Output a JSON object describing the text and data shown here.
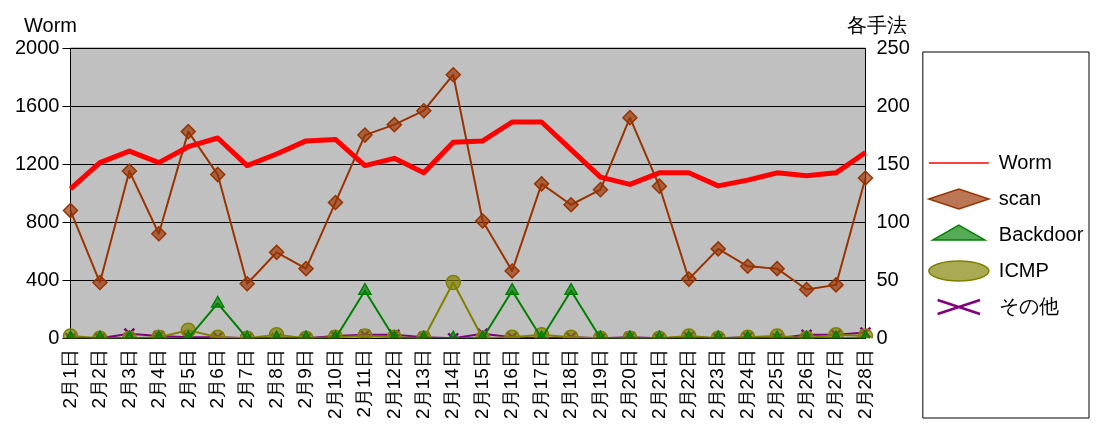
{
  "chart_data": {
    "type": "line",
    "ylabel": "Worm",
    "y2label": "各手法",
    "categories": [
      "2月1日",
      "2月2日",
      "2月3日",
      "2月4日",
      "2月5日",
      "2月6日",
      "2月7日",
      "2月8日",
      "2月9日",
      "2月10日",
      "2月11日",
      "2月12日",
      "2月13日",
      "2月14日",
      "2月15日",
      "2月16日",
      "2月17日",
      "2月18日",
      "2月19日",
      "2月20日",
      "2月21日",
      "2月22日",
      "2月23日",
      "2月24日",
      "2月25日",
      "2月26日",
      "2月27日",
      "2月28日"
    ],
    "series": [
      {
        "name": "Worm",
        "color": "#ff0000",
        "marker": "none",
        "values": [
          1030,
          1210,
          1290,
          1210,
          1320,
          1380,
          1190,
          1270,
          1360,
          1370,
          1190,
          1240,
          1140,
          1350,
          1360,
          1490,
          1490,
          1300,
          1110,
          1060,
          1140,
          1140,
          1050,
          1090,
          1140,
          1120,
          1140,
          1280
        ]
      },
      {
        "name": "scan",
        "color": "#993300",
        "marker": "diamond",
        "axis": "y2",
        "values": [
          110,
          48,
          144,
          90,
          178,
          141,
          47,
          74,
          60,
          117,
          175,
          184,
          196,
          227,
          101,
          58,
          133,
          115,
          128,
          190,
          131,
          51,
          77,
          62,
          60,
          42,
          46,
          138
        ]
      },
      {
        "name": "Backdoor",
        "color": "#008000",
        "marker": "triangle",
        "axis": "y2",
        "values": [
          0,
          0,
          0,
          0,
          0,
          30,
          0,
          0,
          0,
          0,
          41,
          0,
          0,
          0,
          0,
          41,
          0,
          41,
          0,
          0,
          0,
          0,
          0,
          0,
          0,
          0,
          0,
          0
        ]
      },
      {
        "name": "ICMP",
        "color": "#808000",
        "marker": "circle",
        "axis": "y2",
        "values": [
          2,
          0,
          0,
          1,
          7,
          1,
          0,
          3,
          0,
          1,
          2,
          1,
          0,
          48,
          0,
          1,
          3,
          1,
          0,
          0,
          0,
          2,
          0,
          1,
          2,
          0,
          3,
          2
        ]
      },
      {
        "name": "その他",
        "color": "#800080",
        "marker": "cross",
        "axis": "y2",
        "values": [
          0,
          0,
          4,
          2,
          1,
          1,
          0,
          0,
          0,
          2,
          3,
          3,
          1,
          0,
          4,
          1,
          0,
          1,
          0,
          1,
          0,
          1,
          0,
          1,
          0,
          3,
          3,
          5
        ]
      }
    ],
    "ylim": [
      0,
      2000
    ],
    "yticks": [
      0,
      400,
      800,
      1200,
      1600,
      2000
    ],
    "y2lim": [
      0,
      250
    ],
    "y2ticks": [
      0,
      50,
      100,
      150,
      200,
      250
    ],
    "grid": "y",
    "legend": "right"
  }
}
